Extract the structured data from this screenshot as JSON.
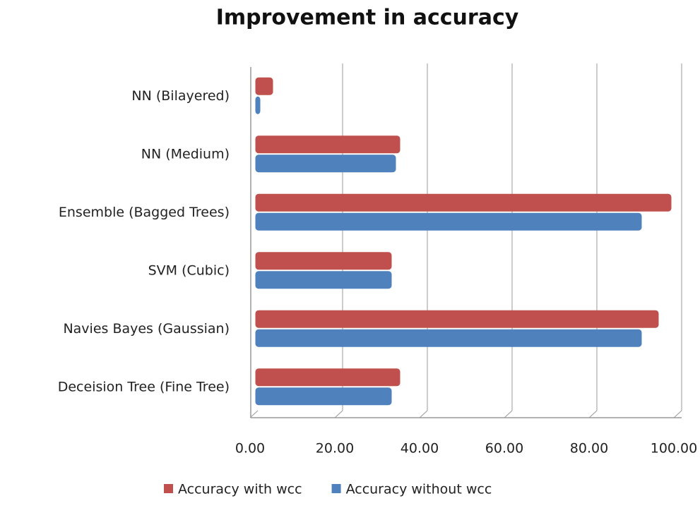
{
  "chart_data": {
    "type": "bar",
    "orientation": "horizontal",
    "title": "Improvement in accuracy",
    "categories": [
      "NN (Bilayered)",
      "NN (Medium)",
      "Ensemble (Bagged Trees)",
      "SVM (Cubic)",
      "Navies Bayes (Gaussian)",
      "Deceision Tree (Fine Tree)"
    ],
    "series": [
      {
        "name": "Accuracy with wcc",
        "color": "#c0504d",
        "values": [
          4,
          34,
          98,
          32,
          95,
          34
        ]
      },
      {
        "name": "Accuracy without wcc",
        "color": "#4f81bd",
        "values": [
          1,
          33,
          91,
          32,
          91,
          32
        ]
      }
    ],
    "xlim": [
      0,
      100
    ],
    "xticks": [
      {
        "value": 0,
        "label": "0.00"
      },
      {
        "value": 20,
        "label": "20.00"
      },
      {
        "value": 40,
        "label": "40.00"
      },
      {
        "value": 60,
        "label": "60.00"
      },
      {
        "value": 80,
        "label": "80.00"
      },
      {
        "value": 100,
        "label": "100.00"
      }
    ],
    "grid": true,
    "legend": "bottom"
  }
}
